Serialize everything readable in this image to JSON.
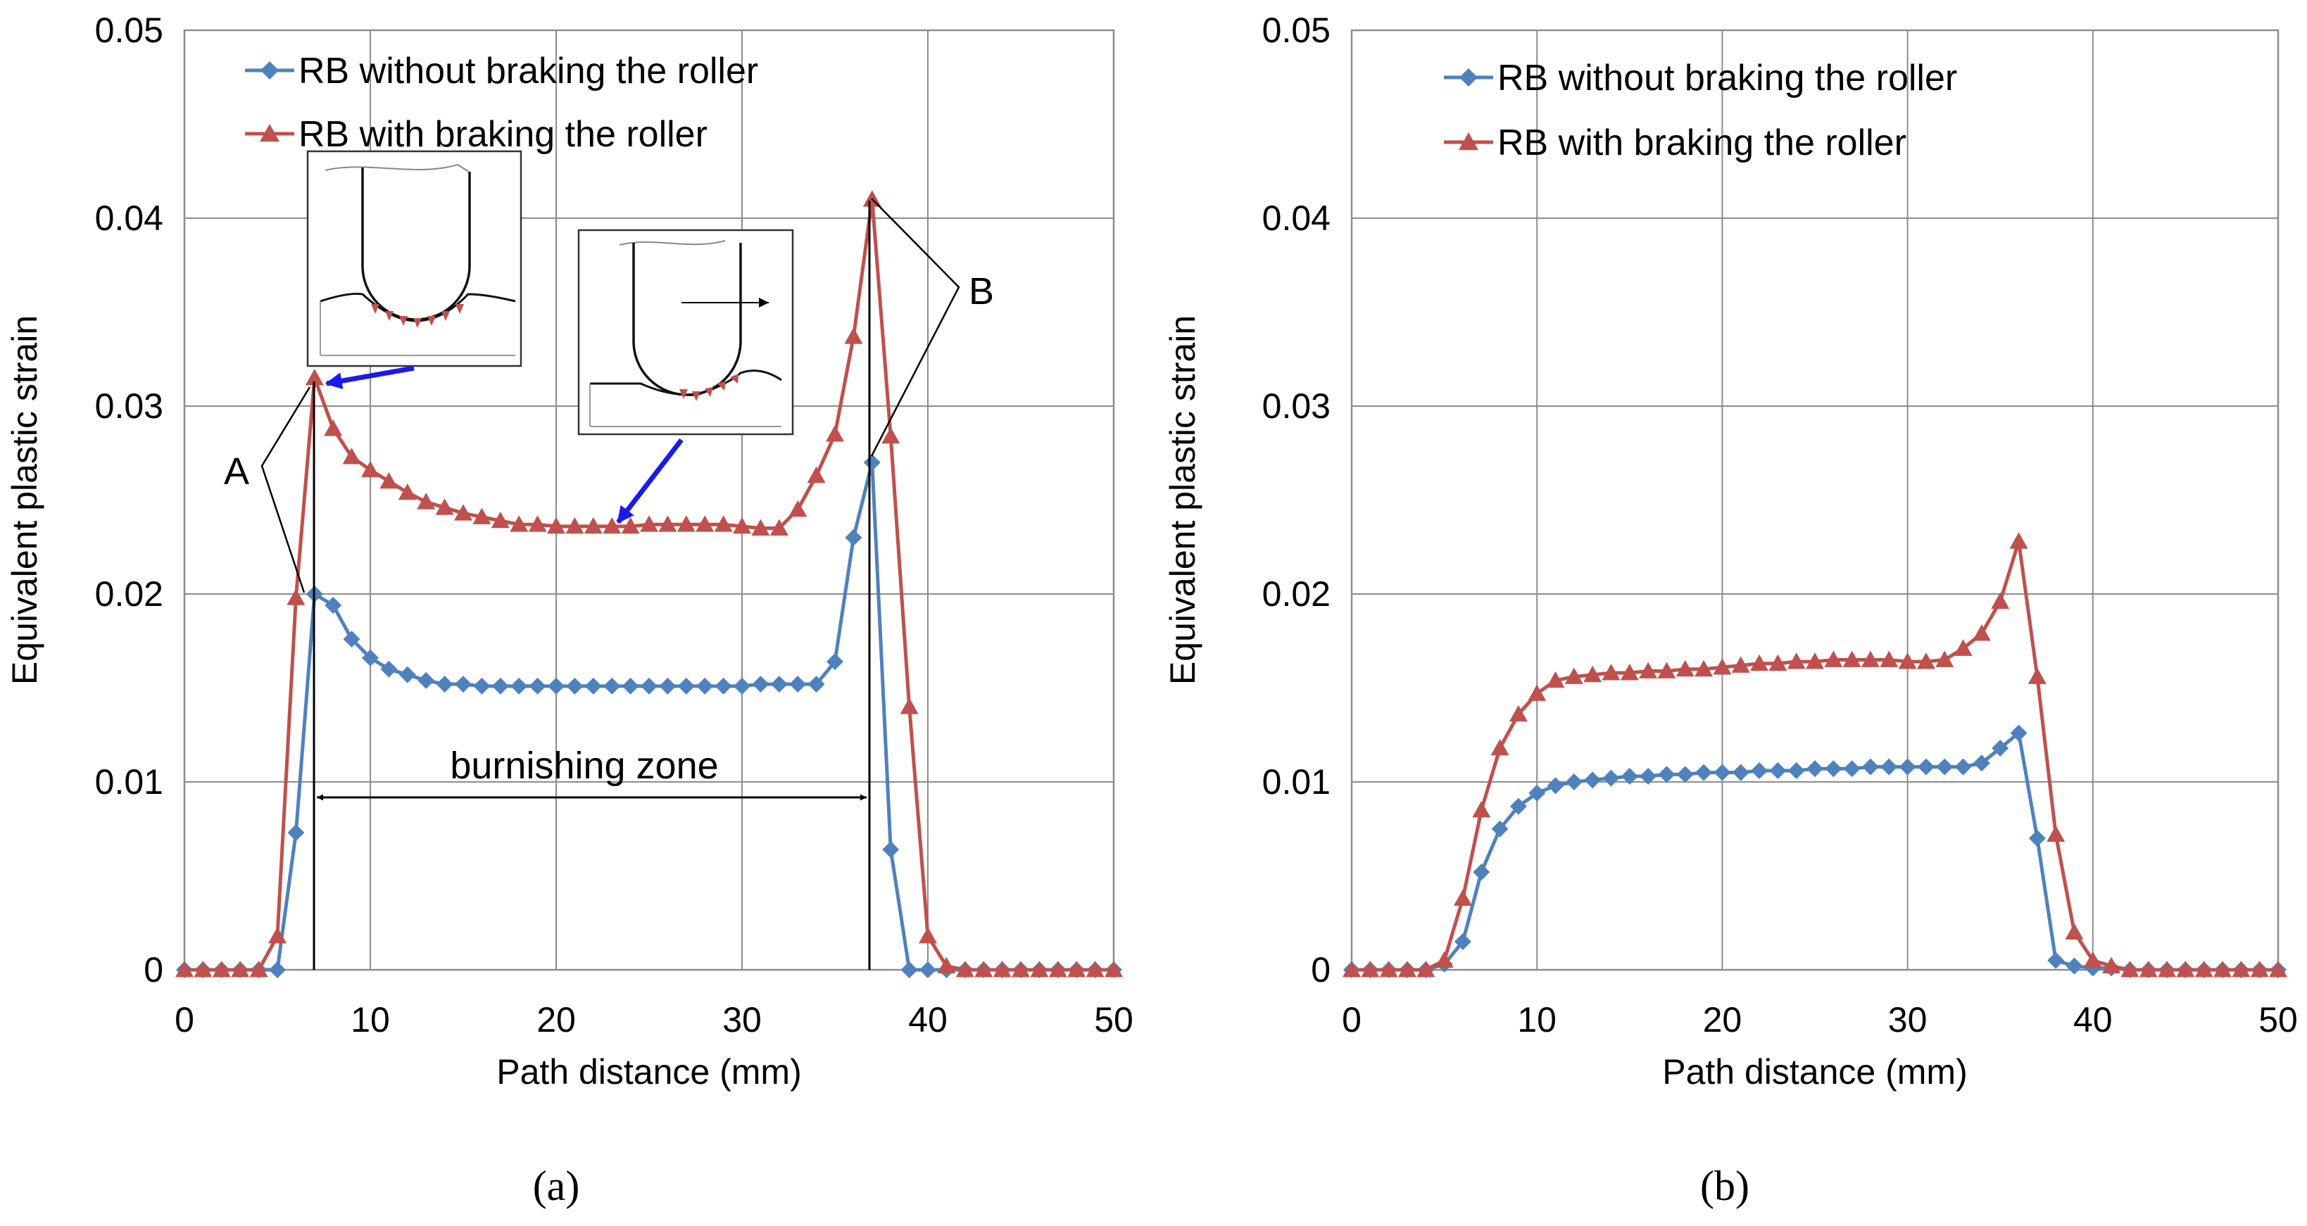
{
  "chart_data": [
    {
      "panel": "(a)",
      "type": "line",
      "xlabel": "Path distance (mm)",
      "ylabel": "Equivalent plastic strain",
      "xlim": [
        0,
        50
      ],
      "ylim": [
        0,
        0.05
      ],
      "xticks": [
        "0",
        "10",
        "20",
        "30",
        "40",
        "50"
      ],
      "yticks": [
        "0",
        "0.01",
        "0.02",
        "0.03",
        "0.04",
        "0.05"
      ],
      "grid": true,
      "legend_position": "top-left",
      "series": [
        {
          "name": "RB without braking the roller",
          "color": "#4f81bd",
          "marker": "diamond",
          "x": [
            0,
            1,
            2,
            3,
            4,
            5,
            6,
            7,
            8,
            9,
            10,
            11,
            12,
            13,
            14,
            15,
            16,
            17,
            18,
            19,
            20,
            21,
            22,
            23,
            24,
            25,
            26,
            27,
            28,
            29,
            30,
            31,
            32,
            33,
            34,
            35,
            36,
            37,
            38,
            39,
            40,
            41,
            42,
            43,
            44,
            45,
            46,
            47,
            48,
            49,
            50
          ],
          "y": [
            0,
            0,
            0,
            0,
            0,
            0,
            0.0073,
            0.02,
            0.0194,
            0.0176,
            0.0166,
            0.016,
            0.0157,
            0.0154,
            0.0152,
            0.0152,
            0.0151,
            0.0151,
            0.0151,
            0.0151,
            0.0151,
            0.0151,
            0.0151,
            0.0151,
            0.0151,
            0.0151,
            0.0151,
            0.0151,
            0.0151,
            0.0151,
            0.0151,
            0.0152,
            0.0152,
            0.0152,
            0.0152,
            0.0164,
            0.023,
            0.027,
            0.0064,
            0,
            0,
            0,
            0,
            0,
            0,
            0,
            0,
            0,
            0,
            0,
            0
          ]
        },
        {
          "name": "RB with braking the roller",
          "color": "#c0504d",
          "marker": "triangle",
          "x": [
            0,
            1,
            2,
            3,
            4,
            5,
            6,
            7,
            8,
            9,
            10,
            11,
            12,
            13,
            14,
            15,
            16,
            17,
            18,
            19,
            20,
            21,
            22,
            23,
            24,
            25,
            26,
            27,
            28,
            29,
            30,
            31,
            32,
            33,
            34,
            35,
            36,
            37,
            38,
            39,
            40,
            41,
            42,
            43,
            44,
            45,
            46,
            47,
            48,
            49,
            50
          ],
          "y": [
            0,
            0,
            0,
            0,
            0,
            0.0018,
            0.0198,
            0.0315,
            0.0288,
            0.0273,
            0.0266,
            0.026,
            0.0254,
            0.0249,
            0.0246,
            0.0243,
            0.0241,
            0.0239,
            0.0237,
            0.0237,
            0.0236,
            0.0236,
            0.0236,
            0.0236,
            0.0236,
            0.0237,
            0.0237,
            0.0237,
            0.0237,
            0.0237,
            0.0236,
            0.0235,
            0.0235,
            0.0245,
            0.0263,
            0.0285,
            0.0337,
            0.041,
            0.0284,
            0.014,
            0.0018,
            0.0002,
            0,
            0,
            0,
            0,
            0,
            0,
            0,
            0,
            0
          ]
        }
      ],
      "annotations": {
        "burnishing_zone": "burnishing zone",
        "label_a": "A",
        "label_b": "B"
      }
    },
    {
      "panel": "(b)",
      "type": "line",
      "xlabel": "Path distance (mm)",
      "ylabel": "Equivalent plastic strain",
      "xlim": [
        0,
        50
      ],
      "ylim": [
        0,
        0.05
      ],
      "xticks": [
        "0",
        "10",
        "20",
        "30",
        "40",
        "50"
      ],
      "yticks": [
        "0",
        "0.01",
        "0.02",
        "0.03",
        "0.04",
        "0.05"
      ],
      "grid": true,
      "legend_position": "top-left",
      "series": [
        {
          "name": "RB without braking the roller",
          "color": "#4f81bd",
          "marker": "diamond",
          "x": [
            0,
            1,
            2,
            3,
            4,
            5,
            6,
            7,
            8,
            9,
            10,
            11,
            12,
            13,
            14,
            15,
            16,
            17,
            18,
            19,
            20,
            21,
            22,
            23,
            24,
            25,
            26,
            27,
            28,
            29,
            30,
            31,
            32,
            33,
            34,
            35,
            36,
            37,
            38,
            39,
            40,
            41,
            42,
            43,
            44,
            45,
            46,
            47,
            48,
            49,
            50
          ],
          "y": [
            0,
            0,
            0,
            0,
            0,
            0.0003,
            0.0015,
            0.0052,
            0.0075,
            0.0087,
            0.0094,
            0.0098,
            0.01,
            0.0101,
            0.0102,
            0.0103,
            0.0103,
            0.0104,
            0.0104,
            0.0105,
            0.0105,
            0.0105,
            0.0106,
            0.0106,
            0.0106,
            0.0107,
            0.0107,
            0.0107,
            0.0108,
            0.0108,
            0.0108,
            0.0108,
            0.0108,
            0.0108,
            0.011,
            0.0118,
            0.0126,
            0.007,
            0.0005,
            0.0002,
            0.0001,
            0.0001,
            0,
            0,
            0,
            0,
            0,
            0,
            0,
            0,
            0
          ]
        },
        {
          "name": "RB with braking the roller",
          "color": "#c0504d",
          "marker": "triangle",
          "x": [
            0,
            1,
            2,
            3,
            4,
            5,
            6,
            7,
            8,
            9,
            10,
            11,
            12,
            13,
            14,
            15,
            16,
            17,
            18,
            19,
            20,
            21,
            22,
            23,
            24,
            25,
            26,
            27,
            28,
            29,
            30,
            31,
            32,
            33,
            34,
            35,
            36,
            37,
            38,
            39,
            40,
            41,
            42,
            43,
            44,
            45,
            46,
            47,
            48,
            49,
            50
          ],
          "y": [
            0,
            0,
            0,
            0,
            0,
            0.0005,
            0.0038,
            0.0085,
            0.0118,
            0.0136,
            0.0147,
            0.0154,
            0.0156,
            0.0157,
            0.0158,
            0.0158,
            0.0159,
            0.0159,
            0.016,
            0.016,
            0.0161,
            0.0162,
            0.0163,
            0.0163,
            0.0164,
            0.0164,
            0.0165,
            0.0165,
            0.0165,
            0.0165,
            0.0164,
            0.0164,
            0.0165,
            0.0171,
            0.0179,
            0.0196,
            0.0228,
            0.0156,
            0.0072,
            0.002,
            0.0005,
            0.0002,
            0,
            0,
            0,
            0,
            0,
            0,
            0,
            0,
            0
          ]
        }
      ]
    }
  ]
}
